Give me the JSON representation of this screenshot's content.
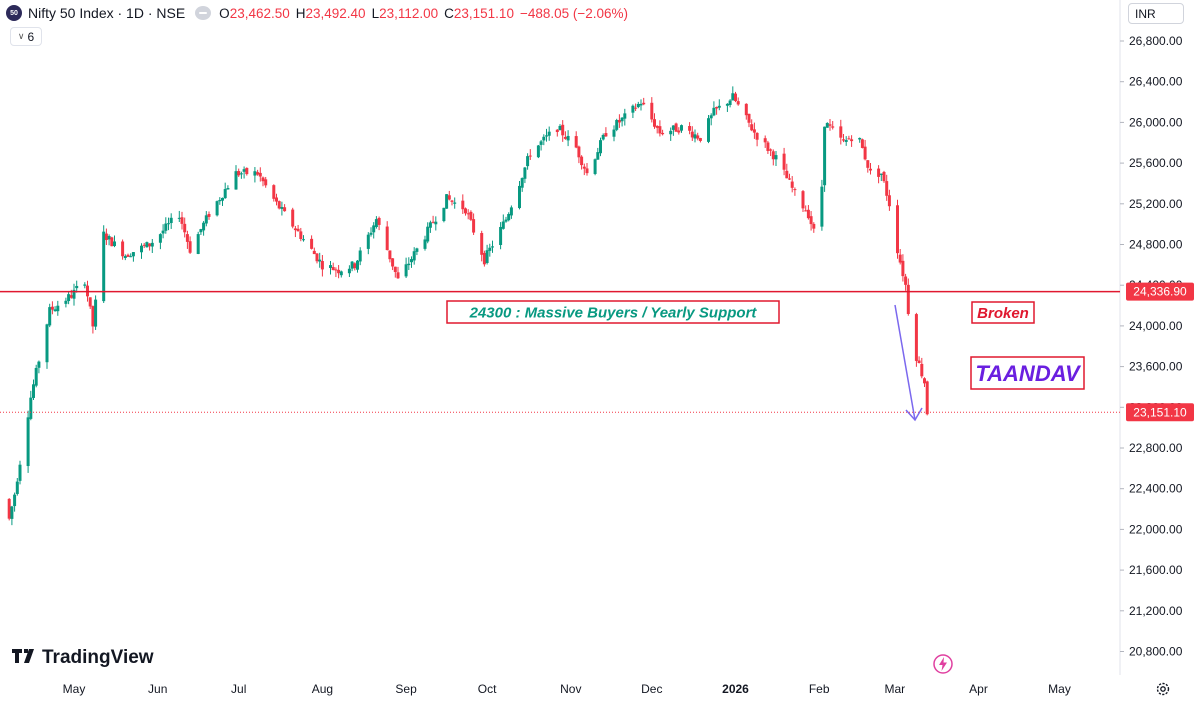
{
  "header": {
    "badge": "50",
    "title": "Nifty 50 Index · 1D · NSE",
    "open_label": "O",
    "open": "23,462.50",
    "high_label": "H",
    "high": "23,492.40",
    "low_label": "L",
    "low": "23,112.00",
    "close_label": "C",
    "close": "23,151.10",
    "change": "−488.05 (−2.06%)",
    "indicator_count": "6",
    "currency": "INR"
  },
  "branding": {
    "logo": "TradingView"
  },
  "icons": {
    "visibility": "eye-icon",
    "settings": "gear-icon",
    "alert": "lightning-icon",
    "indicators": "chevron-down-icon"
  },
  "colors": {
    "up": "#089981",
    "down": "#f23645",
    "support_line": "#e0182f",
    "annotation_green": "#089981",
    "annotation_red": "#e0182f",
    "taandav": "#6a1fe0",
    "arrow": "#7b68ee"
  },
  "chart_data": {
    "type": "candlestick",
    "y_axis": {
      "min": 20700,
      "max": 27000,
      "ticks": [
        26800,
        26400,
        26000,
        25600,
        25200,
        24800,
        24400,
        24000,
        23600,
        23200,
        22800,
        22400,
        22000,
        21600,
        21200,
        20800
      ],
      "tick_labels": [
        "26,800.00",
        "26,400.00",
        "26,000.00",
        "25,600.00",
        "25,200.00",
        "24,800.00",
        "24,400.00",
        "24,000.00",
        "23,600.00",
        "23,200.00",
        "22,800.00",
        "22,400.00",
        "22,000.00",
        "21,600.00",
        "21,200.00",
        "20,800.00"
      ]
    },
    "x_axis": {
      "labels": [
        {
          "text": "May",
          "date": "2025-05-01"
        },
        {
          "text": "Jun",
          "date": "2025-06-01"
        },
        {
          "text": "Jul",
          "date": "2025-07-01"
        },
        {
          "text": "Aug",
          "date": "2025-08-01"
        },
        {
          "text": "Sep",
          "date": "2025-09-01"
        },
        {
          "text": "Oct",
          "date": "2025-10-01"
        },
        {
          "text": "Nov",
          "date": "2025-11-01"
        },
        {
          "text": "Dec",
          "date": "2025-12-01"
        },
        {
          "text": "2026",
          "date": "2026-01-01",
          "bold": true
        },
        {
          "text": "Feb",
          "date": "2026-02-01"
        },
        {
          "text": "Mar",
          "date": "2026-03-01"
        },
        {
          "text": "Apr",
          "date": "2026-04-01"
        },
        {
          "text": "May",
          "date": "2026-05-01"
        }
      ]
    },
    "price_labels": [
      {
        "value": 24336.9,
        "text": "24,336.90"
      },
      {
        "value": 23151.1,
        "text": "23,151.10"
      }
    ],
    "support_level": 24336.9,
    "last_price": 23151.1,
    "annotations": [
      {
        "text": "24300 : Massive Buyers / Yearly Support",
        "role": "support"
      },
      {
        "text": "Broken",
        "role": "broken"
      },
      {
        "text": "TAANDAV",
        "role": "taandav"
      }
    ],
    "anchors": [
      {
        "d": "2025-04-07",
        "v": 22100
      },
      {
        "d": "2025-04-09",
        "v": 22350
      },
      {
        "d": "2025-04-15",
        "v": 23300
      },
      {
        "d": "2025-04-22",
        "v": 24150
      },
      {
        "d": "2025-04-30",
        "v": 24300
      },
      {
        "d": "2025-05-05",
        "v": 24450
      },
      {
        "d": "2025-05-08",
        "v": 24000
      },
      {
        "d": "2025-05-12",
        "v": 24900
      },
      {
        "d": "2025-05-20",
        "v": 24700
      },
      {
        "d": "2025-05-29",
        "v": 24800
      },
      {
        "d": "2025-06-09",
        "v": 25100
      },
      {
        "d": "2025-06-13",
        "v": 24750
      },
      {
        "d": "2025-06-20",
        "v": 25100
      },
      {
        "d": "2025-06-30",
        "v": 25500
      },
      {
        "d": "2025-07-08",
        "v": 25500
      },
      {
        "d": "2025-07-15",
        "v": 25200
      },
      {
        "d": "2025-07-25",
        "v": 24850
      },
      {
        "d": "2025-08-01",
        "v": 24600
      },
      {
        "d": "2025-08-07",
        "v": 24550
      },
      {
        "d": "2025-08-13",
        "v": 24600
      },
      {
        "d": "2025-08-21",
        "v": 25050
      },
      {
        "d": "2025-08-29",
        "v": 24450
      },
      {
        "d": "2025-09-05",
        "v": 24750
      },
      {
        "d": "2025-09-16",
        "v": 25250
      },
      {
        "d": "2025-09-23",
        "v": 25150
      },
      {
        "d": "2025-09-30",
        "v": 24650
      },
      {
        "d": "2025-10-08",
        "v": 25050
      },
      {
        "d": "2025-10-17",
        "v": 25700
      },
      {
        "d": "2025-10-27",
        "v": 25950
      },
      {
        "d": "2025-11-03",
        "v": 25750
      },
      {
        "d": "2025-11-07",
        "v": 25500
      },
      {
        "d": "2025-11-14",
        "v": 25900
      },
      {
        "d": "2025-11-21",
        "v": 26050
      },
      {
        "d": "2025-11-27",
        "v": 26200
      },
      {
        "d": "2025-12-04",
        "v": 25900
      },
      {
        "d": "2025-12-12",
        "v": 25950
      },
      {
        "d": "2025-12-19",
        "v": 25850
      },
      {
        "d": "2025-12-24",
        "v": 26100
      },
      {
        "d": "2025-12-31",
        "v": 26250
      },
      {
        "d": "2026-01-08",
        "v": 25900
      },
      {
        "d": "2026-01-16",
        "v": 25650
      },
      {
        "d": "2026-01-23",
        "v": 25300
      },
      {
        "d": "2026-01-28",
        "v": 25100
      },
      {
        "d": "2026-02-01",
        "v": 24750
      },
      {
        "d": "2026-02-03",
        "v": 26000
      },
      {
        "d": "2026-02-10",
        "v": 25800
      },
      {
        "d": "2026-02-15",
        "v": 25900
      },
      {
        "d": "2026-02-20",
        "v": 25500
      },
      {
        "d": "2026-02-24",
        "v": 25500
      },
      {
        "d": "2026-02-27",
        "v": 25200
      },
      {
        "d": "2026-03-02",
        "v": 24750
      },
      {
        "d": "2026-03-05",
        "v": 24400
      },
      {
        "d": "2026-03-06",
        "v": 24150
      },
      {
        "d": "2026-03-09",
        "v": 23700
      },
      {
        "d": "2026-03-12",
        "v": 23450
      },
      {
        "d": "2026-03-13",
        "v": 23151.1
      }
    ]
  }
}
